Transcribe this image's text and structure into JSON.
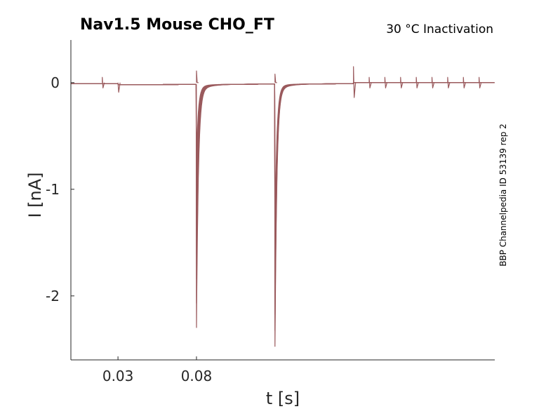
{
  "chart_data": {
    "type": "line",
    "title": "Nav1.5  Mouse  CHO_FT",
    "annotation": "30 °C  Inactivation",
    "side_label": "BBP Channelpedia ID 53139 rep 2",
    "xlabel": "t [s]",
    "ylabel": "I [nA]",
    "xlim": [
      0.0,
      0.27
    ],
    "ylim": [
      -2.6,
      0.4
    ],
    "xticks": [
      0.03,
      0.08
    ],
    "xtick_labels": [
      "0.03",
      "0.08"
    ],
    "yticks": [
      0,
      -1,
      -2
    ],
    "ytick_labels": [
      "0",
      "-1",
      "-2"
    ],
    "grid": false,
    "trace_color": "#9a5a5d",
    "sweep_count": 8,
    "protocol": {
      "baseline": -0.01,
      "step1_start": 0.03,
      "pulse1_time": 0.08,
      "pulse1_peak": -2.2,
      "pulse2_time": 0.13,
      "pulse2_peak": -2.38,
      "step_end": 0.18,
      "small_artifact_times": [
        0.02,
        0.19,
        0.2,
        0.21,
        0.22,
        0.23,
        0.24,
        0.25,
        0.26
      ]
    }
  }
}
